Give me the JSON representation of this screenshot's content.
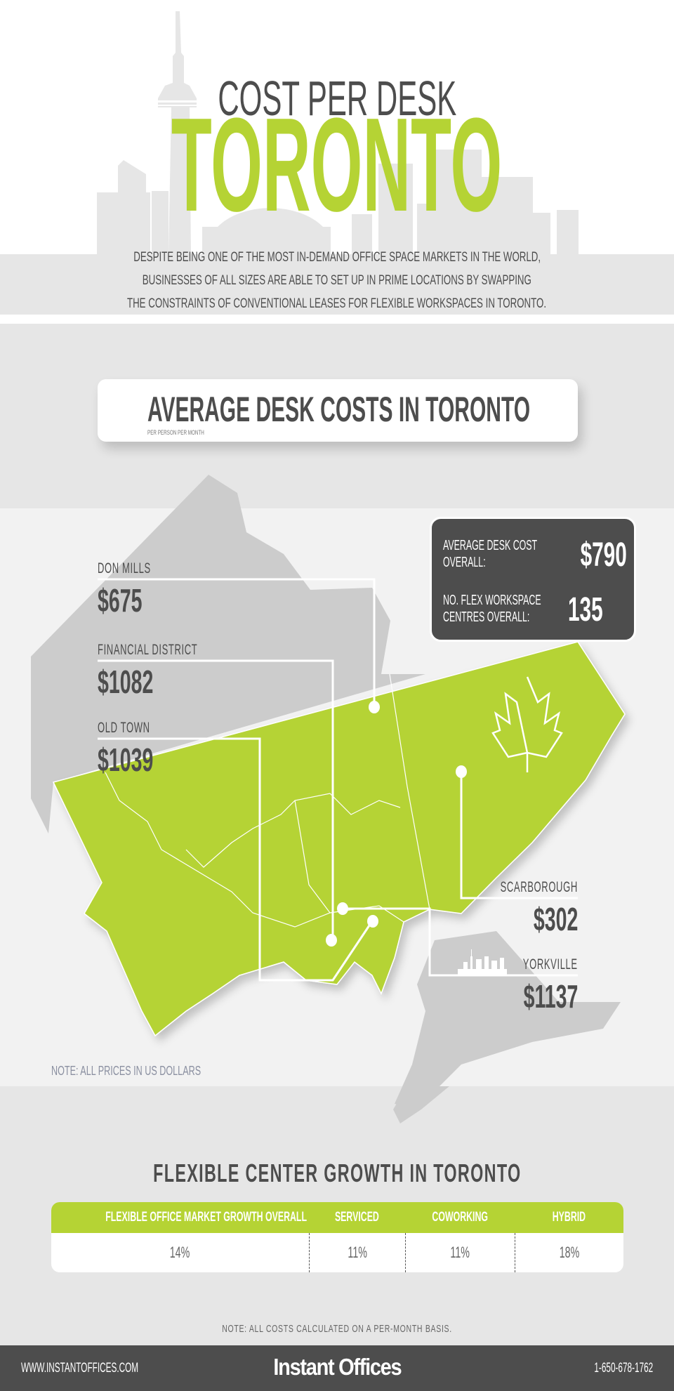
{
  "header": {
    "kicker": "COST PER DESK",
    "title": "TORONTO",
    "description": [
      "DESPITE BEING ONE OF THE MOST IN-DEMAND OFFICE SPACE MARKETS IN THE WORLD,",
      "BUSINESSES OF ALL SIZES ARE ABLE TO SET UP IN PRIME LOCATIONS BY SWAPPING",
      "THE CONSTRAINTS OF CONVENTIONAL LEASES FOR FLEXIBLE WORKSPACES IN TORONTO."
    ]
  },
  "desk_costs": {
    "title": "AVERAGE DESK COSTS IN TORONTO",
    "subtitle": "PER PERSON PER MONTH",
    "summary": {
      "avg_label": [
        "AVERAGE DESK COST",
        "OVERALL:"
      ],
      "avg_value": "$790",
      "centres_label": [
        "NO. FLEX WORKSPACE",
        "CENTRES OVERALL:"
      ],
      "centres_value": "135"
    },
    "locations": [
      {
        "name": "DON MILLS",
        "price": "$675"
      },
      {
        "name": "FINANCIAL DISTRICT",
        "price": "$1082"
      },
      {
        "name": "OLD TOWN",
        "price": "$1039"
      },
      {
        "name": "SCARBOROUGH",
        "price": "$302"
      },
      {
        "name": "YORKVILLE",
        "price": "$1137"
      }
    ],
    "note": "NOTE: ALL PRICES IN US DOLLARS",
    "map_icon": "maple-leaf-icon"
  },
  "growth": {
    "title": "FLEXIBLE CENTER GROWTH IN TORONTO",
    "columns": [
      {
        "header": "FLEXIBLE OFFICE MARKET GROWTH OVERALL",
        "value": "14%"
      },
      {
        "header": "SERVICED",
        "value": "11%"
      },
      {
        "header": "COWORKING",
        "value": "11%"
      },
      {
        "header": "HYBRID",
        "value": "18%"
      }
    ],
    "note": "NOTE: ALL COSTS CALCULATED ON A PER-MONTH BASIS."
  },
  "footer": {
    "website": "WWW.INSTANTOFFICES.COM",
    "brand": "Instant Offices",
    "phone": "1-650-678-1762"
  },
  "colors": {
    "accent_green": "#b5d334",
    "dark_grey": "#4d4d4d",
    "light_grey": "#e6e6e6",
    "map_grey": "#cccccc"
  }
}
